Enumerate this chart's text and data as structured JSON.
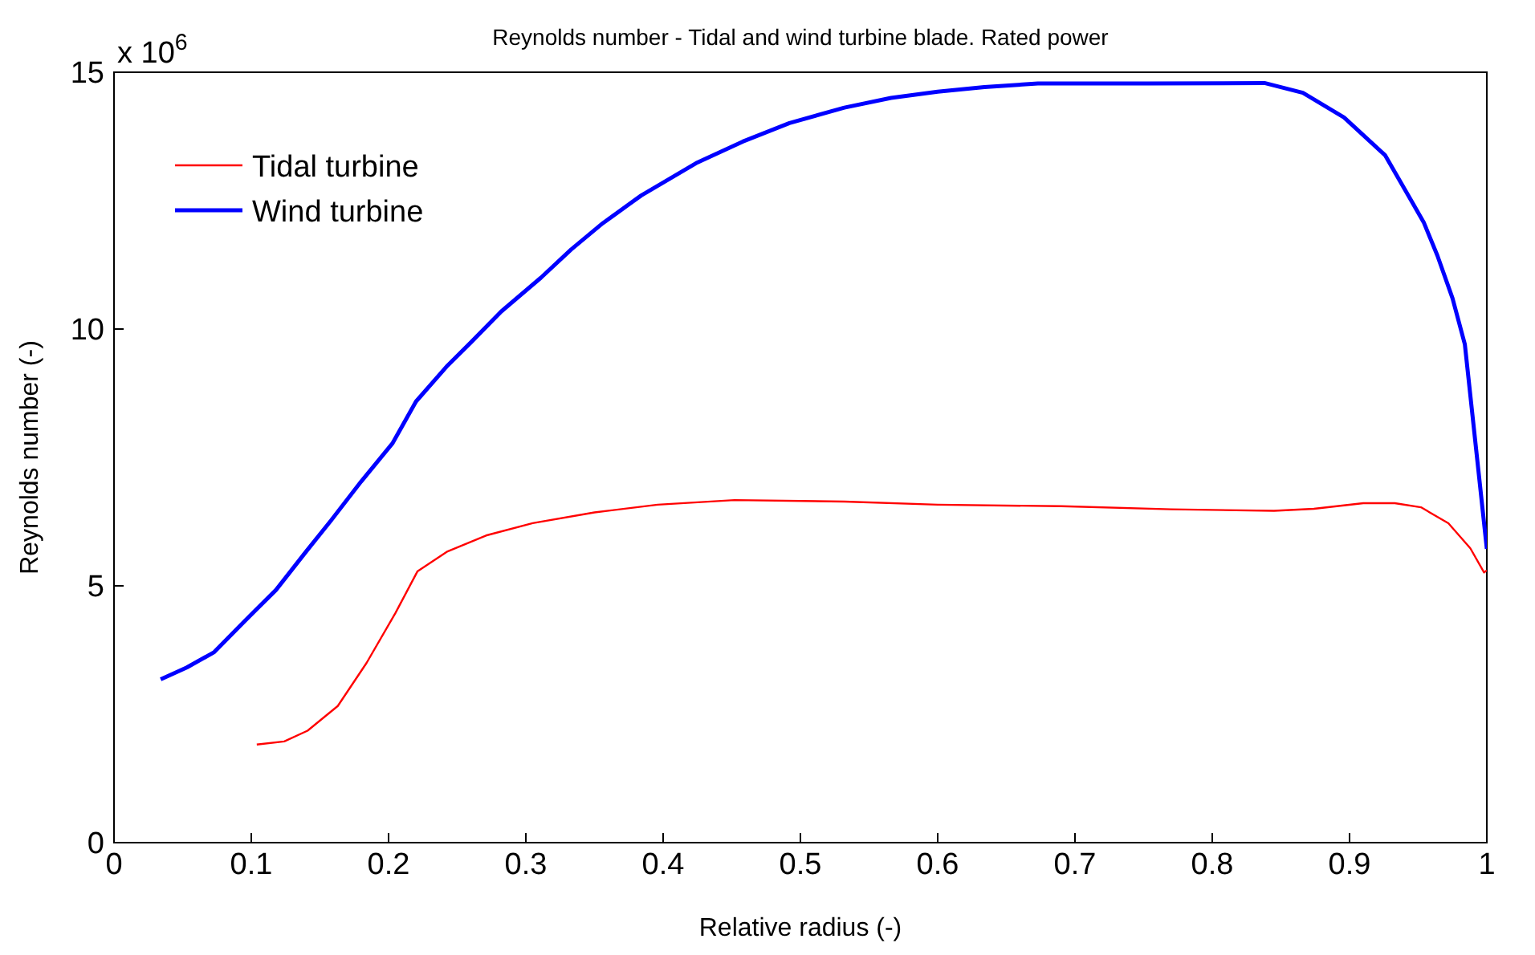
{
  "chart_data": {
    "type": "line",
    "title": "Reynolds number - Tidal and wind turbine blade. Rated power",
    "xlabel": "Relative radius (-)",
    "ylabel": "Reynolds number (-)",
    "annotations": [
      "x 10$^{6}$"
    ],
    "xlim": [
      0,
      1
    ],
    "xticks": [
      0,
      0.1,
      0.2,
      0.3,
      0.4,
      0.5,
      0.6,
      0.7,
      0.8,
      0.9,
      1
    ],
    "ylim": [
      0,
      15
    ],
    "yticks": [
      0,
      5,
      10,
      15
    ],
    "grid": false,
    "legend": "top left",
    "marker": "none",
    "line_style": "solid",
    "series": [
      {
        "name": "Tidal turbine",
        "color": "#ff0000",
        "x": [
          0.104,
          0.124,
          0.141,
          0.163,
          0.184,
          0.205,
          0.221,
          0.243,
          0.271,
          0.305,
          0.35,
          0.396,
          0.452,
          0.532,
          0.6,
          0.69,
          0.77,
          0.845,
          0.874,
          0.91,
          0.933,
          0.952,
          0.972,
          0.988,
          0.998,
          1.0
        ],
        "values": [
          1.91,
          1.97,
          2.18,
          2.66,
          3.5,
          4.47,
          5.28,
          5.67,
          5.98,
          6.22,
          6.43,
          6.58,
          6.67,
          6.64,
          6.58,
          6.55,
          6.49,
          6.46,
          6.5,
          6.61,
          6.61,
          6.53,
          6.22,
          5.73,
          5.26,
          5.3
        ]
      },
      {
        "name": "Wind turbine",
        "color": "#0000ff",
        "x": [
          0.034,
          0.053,
          0.073,
          0.095,
          0.118,
          0.14,
          0.158,
          0.18,
          0.203,
          0.22,
          0.243,
          0.26,
          0.282,
          0.311,
          0.333,
          0.356,
          0.384,
          0.424,
          0.458,
          0.492,
          0.532,
          0.566,
          0.6,
          0.634,
          0.673,
          0.753,
          0.838,
          0.866,
          0.896,
          0.926,
          0.954,
          0.964,
          0.975,
          0.984,
          1.0
        ],
        "values": [
          3.18,
          3.41,
          3.71,
          4.31,
          4.92,
          5.67,
          6.27,
          7.03,
          7.78,
          8.59,
          9.29,
          9.74,
          10.34,
          11.0,
          11.55,
          12.06,
          12.6,
          13.23,
          13.65,
          14.01,
          14.31,
          14.5,
          14.62,
          14.71,
          14.78,
          14.78,
          14.79,
          14.6,
          14.12,
          13.38,
          12.08,
          11.43,
          10.6,
          9.7,
          5.72
        ]
      }
    ]
  }
}
